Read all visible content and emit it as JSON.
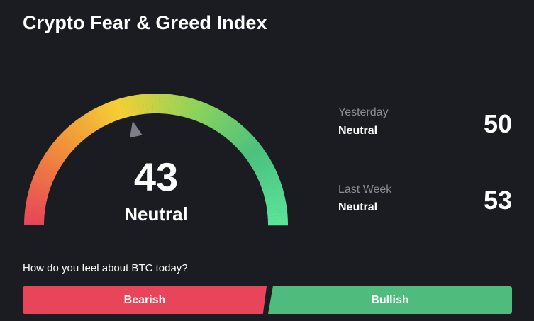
{
  "widget": {
    "title": "Crypto Fear & Greed Index"
  },
  "gauge": {
    "value": "43",
    "numeric_value": 43,
    "classification": "Neutral",
    "colors": [
      "#e8455a",
      "#f08a3c",
      "#f6cf34",
      "#8fd45a",
      "#4bc27f",
      "#5ce49a"
    ]
  },
  "history": [
    {
      "caption": "Yesterday",
      "label": "Neutral",
      "value": "50"
    },
    {
      "caption": "Last Week",
      "label": "Neutral",
      "value": "53"
    }
  ],
  "vote": {
    "question": "How do you feel about BTC today?",
    "bearish_label": "Bearish",
    "bullish_label": "Bullish",
    "bearish_color": "#e8455a",
    "bullish_color": "#4fbb7d"
  }
}
